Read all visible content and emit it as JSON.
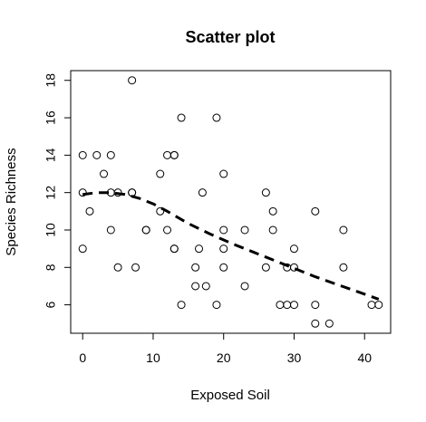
{
  "chart_data": {
    "type": "scatter",
    "title": "Scatter plot",
    "xlabel": "Exposed Soil",
    "ylabel": "Species Richness",
    "xlim": [
      -1.7,
      43.7
    ],
    "ylim": [
      4.48,
      18.52
    ],
    "x_ticks": [
      0,
      10,
      20,
      30,
      40
    ],
    "y_ticks": [
      6,
      8,
      10,
      12,
      14,
      16,
      18
    ],
    "grid": false,
    "legend": "none",
    "colors": {
      "points": "#000000",
      "line": "#000000"
    },
    "points": [
      {
        "x": 0,
        "y": 14
      },
      {
        "x": 0,
        "y": 12
      },
      {
        "x": 0,
        "y": 9
      },
      {
        "x": 1,
        "y": 11
      },
      {
        "x": 2,
        "y": 14
      },
      {
        "x": 3,
        "y": 13
      },
      {
        "x": 4,
        "y": 14
      },
      {
        "x": 4,
        "y": 12
      },
      {
        "x": 4,
        "y": 10
      },
      {
        "x": 5,
        "y": 12
      },
      {
        "x": 5,
        "y": 8
      },
      {
        "x": 7,
        "y": 18
      },
      {
        "x": 7,
        "y": 12
      },
      {
        "x": 7,
        "y": 12
      },
      {
        "x": 7.5,
        "y": 8
      },
      {
        "x": 9,
        "y": 10
      },
      {
        "x": 9,
        "y": 10
      },
      {
        "x": 11,
        "y": 13
      },
      {
        "x": 11,
        "y": 11
      },
      {
        "x": 12,
        "y": 14
      },
      {
        "x": 12,
        "y": 10
      },
      {
        "x": 13,
        "y": 14
      },
      {
        "x": 13,
        "y": 14
      },
      {
        "x": 13,
        "y": 9
      },
      {
        "x": 13,
        "y": 9
      },
      {
        "x": 14,
        "y": 16
      },
      {
        "x": 14,
        "y": 6
      },
      {
        "x": 16,
        "y": 8
      },
      {
        "x": 16,
        "y": 7
      },
      {
        "x": 16.5,
        "y": 9
      },
      {
        "x": 17,
        "y": 12
      },
      {
        "x": 17.5,
        "y": 7
      },
      {
        "x": 19,
        "y": 16
      },
      {
        "x": 19,
        "y": 6
      },
      {
        "x": 20,
        "y": 13
      },
      {
        "x": 20,
        "y": 10
      },
      {
        "x": 20,
        "y": 9
      },
      {
        "x": 20,
        "y": 8
      },
      {
        "x": 23,
        "y": 10
      },
      {
        "x": 23,
        "y": 7
      },
      {
        "x": 26,
        "y": 12
      },
      {
        "x": 26,
        "y": 8
      },
      {
        "x": 27,
        "y": 11
      },
      {
        "x": 27,
        "y": 10
      },
      {
        "x": 28,
        "y": 6
      },
      {
        "x": 29,
        "y": 8
      },
      {
        "x": 29,
        "y": 6
      },
      {
        "x": 30,
        "y": 9
      },
      {
        "x": 30,
        "y": 8
      },
      {
        "x": 30,
        "y": 6
      },
      {
        "x": 33,
        "y": 11
      },
      {
        "x": 33,
        "y": 6
      },
      {
        "x": 33,
        "y": 5
      },
      {
        "x": 35,
        "y": 5
      },
      {
        "x": 37,
        "y": 10
      },
      {
        "x": 37,
        "y": 8
      },
      {
        "x": 41,
        "y": 6
      },
      {
        "x": 42,
        "y": 6
      }
    ],
    "smooth_line": {
      "style": "dashed",
      "x": [
        0,
        2,
        4,
        6,
        8,
        10,
        12,
        15,
        18,
        21,
        24,
        27,
        30,
        33,
        36,
        39,
        42
      ],
      "y": [
        11.9,
        12.0,
        12.0,
        11.9,
        11.7,
        11.4,
        11.0,
        10.35,
        9.8,
        9.3,
        8.85,
        8.4,
        7.95,
        7.5,
        7.1,
        6.7,
        6.3
      ]
    }
  }
}
